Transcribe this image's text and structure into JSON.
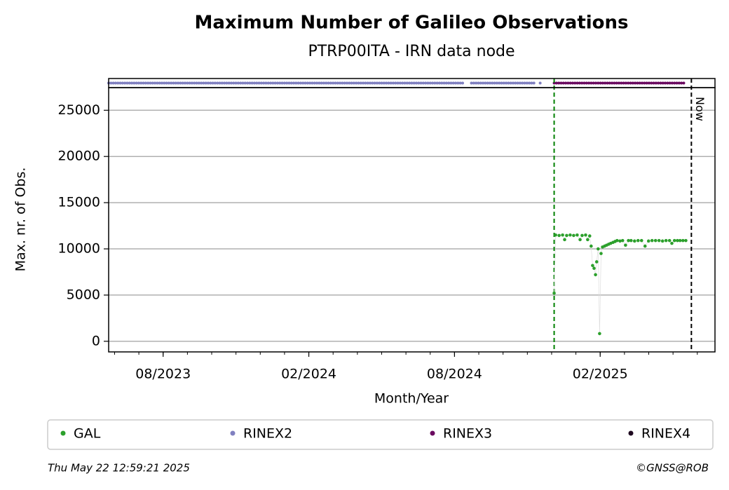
{
  "chart_data": {
    "type": "scatter",
    "title": "Maximum Number of Galileo Observations",
    "subtitle": "PTRP00ITA - IRN data node",
    "x_label": "Month/Year",
    "y_label": "Max. nr. of Obs.",
    "xlim": [
      2023.396,
      2025.477
    ],
    "ylim": [
      -1150,
      27450
    ],
    "xticks": [
      {
        "value": 2023.583,
        "label": "08/2023"
      },
      {
        "value": 2024.083,
        "label": "02/2024"
      },
      {
        "value": 2024.583,
        "label": "08/2024"
      },
      {
        "value": 2025.083,
        "label": "02/2025"
      }
    ],
    "yticks": [
      0,
      5000,
      10000,
      15000,
      20000,
      25000
    ],
    "grid": true,
    "series": [
      {
        "name": "GAL",
        "color": "#2ca02c",
        "x": [
          2024.925,
          2024.93,
          2024.942,
          2024.954,
          2024.961,
          2024.968,
          2024.98,
          2024.992,
          2025.004,
          2025.014,
          2025.021,
          2025.033,
          2025.04,
          2025.047,
          2025.052,
          2025.057,
          2025.062,
          2025.067,
          2025.071,
          2025.076,
          2025.081,
          2025.086,
          2025.091,
          2025.098,
          2025.105,
          2025.112,
          2025.119,
          2025.127,
          2025.134,
          2025.141,
          2025.151,
          2025.16,
          2025.17,
          2025.18,
          2025.189,
          2025.201,
          2025.213,
          2025.225,
          2025.237,
          2025.249,
          2025.261,
          2025.273,
          2025.285,
          2025.297,
          2025.309,
          2025.321,
          2025.329,
          2025.338,
          2025.348,
          2025.357,
          2025.367,
          2025.377
        ],
        "values": [
          5200,
          11500,
          11450,
          11500,
          11000,
          11450,
          11500,
          11450,
          11500,
          11000,
          11450,
          11500,
          11000,
          11400,
          10300,
          8200,
          7900,
          7200,
          8600,
          10000,
          830,
          9500,
          10200,
          10300,
          10400,
          10500,
          10600,
          10700,
          10800,
          10900,
          10850,
          10900,
          10400,
          10900,
          10900,
          10850,
          10900,
          10900,
          10300,
          10850,
          10900,
          10900,
          10900,
          10850,
          10900,
          10900,
          10600,
          10900,
          10900,
          10900,
          10900,
          10900
        ]
      }
    ],
    "formats": [
      {
        "name": "RINEX2",
        "color": "#8080c0",
        "ranges": [
          [
            2023.396,
            2024.612
          ],
          [
            2024.641,
            2024.857
          ],
          [
            2024.877,
            2024.877
          ]
        ]
      },
      {
        "name": "RINEX3",
        "color": "#6a0a60",
        "ranges": [
          [
            2024.925,
            2025.377
          ]
        ]
      },
      {
        "name": "RINEX4",
        "color": "#1e0a20",
        "ranges": []
      }
    ],
    "first_obs_line": {
      "x": 2024.925,
      "color": "#008000"
    },
    "now_line": {
      "x": 2025.396,
      "label": "Now",
      "color": "#000000"
    },
    "timestamp": "Thu May 22 12:59:21 2025",
    "credit": "©GNSS@ROB"
  }
}
